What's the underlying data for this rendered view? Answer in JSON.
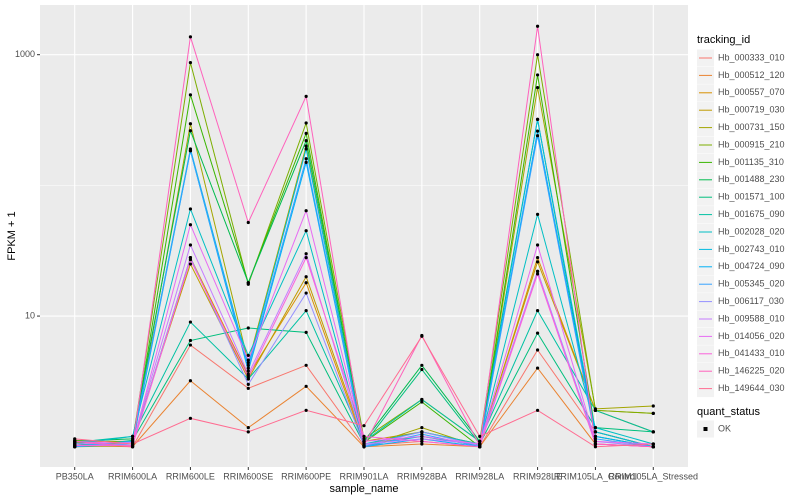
{
  "chart_data": {
    "type": "line",
    "x_label": "sample_name",
    "y_label": "FPKM + 1",
    "log_y": true,
    "grid": true,
    "legend_title": "tracking_id",
    "legend_position": "right",
    "point_legend": {
      "title": "quant_status",
      "labels": [
        "OK"
      ]
    },
    "categories": [
      "PB350LA",
      "RRIM600LA",
      "RRIM600LE",
      "RRIM600SE",
      "RRIM600PE",
      "RRIM901LA",
      "RRIM928BA",
      "RRIM928LA",
      "RRIM928LE",
      "RRIM105LA_Control",
      "RRIM105LA_Stressed"
    ],
    "ylim": [
      0.7,
      2400
    ],
    "yticks": [
      10,
      1000
    ],
    "series": [
      {
        "name": "Hb_000333_010",
        "color": "#F8766D",
        "values": [
          1.05,
          1.0,
          6,
          2.8,
          4.2,
          1.02,
          1.1,
          1.0,
          5.5,
          1.3,
          1.0
        ]
      },
      {
        "name": "Hb_000512_120",
        "color": "#EA8331",
        "values": [
          1.02,
          1.0,
          3.2,
          1.4,
          2.9,
          1.0,
          1.05,
          1.0,
          4.0,
          1.05,
          1.0
        ]
      },
      {
        "name": "Hb_000557_070",
        "color": "#D89000",
        "values": [
          1.08,
          1.05,
          28,
          3.5,
          18,
          1.05,
          1.2,
          1.02,
          28,
          1.9,
          1.3
        ]
      },
      {
        "name": "Hb_000719_030",
        "color": "#C09B00",
        "values": [
          1.1,
          1.1,
          25,
          3.3,
          20,
          1.1,
          1.3,
          1.05,
          26,
          1.9,
          1.8
        ]
      },
      {
        "name": "Hb_000731_150",
        "color": "#A3A500",
        "values": [
          1.0,
          1.02,
          296,
          4.4,
          200,
          1.0,
          1.4,
          1.0,
          560,
          1.95,
          2.05
        ]
      },
      {
        "name": "Hb_000915_210",
        "color": "#7CAE00",
        "values": [
          1.12,
          1.08,
          870,
          17.5,
          300,
          1.15,
          2.3,
          1.1,
          1000,
          1.9,
          1.8
        ]
      },
      {
        "name": "Hb_001135_310",
        "color": "#39B600",
        "values": [
          1.05,
          1.05,
          493,
          18,
          250,
          1.08,
          2.2,
          1.0,
          700,
          1.3,
          1.0
        ]
      },
      {
        "name": "Hb_001488_230",
        "color": "#00BB4E",
        "values": [
          1.1,
          1.15,
          262,
          18,
          220,
          1.1,
          4.2,
          1.1,
          320,
          1.2,
          1.0
        ]
      },
      {
        "name": "Hb_001571_100",
        "color": "#00BF7D",
        "values": [
          1.0,
          1.12,
          6.5,
          8.1,
          7.5,
          1.05,
          3.9,
          1.05,
          7.4,
          1.4,
          1.3
        ]
      },
      {
        "name": "Hb_001675_090",
        "color": "#00C1A3",
        "values": [
          1.08,
          1.2,
          9,
          3.3,
          11,
          1.1,
          2.3,
          1.1,
          11,
          1.9,
          1.3
        ]
      },
      {
        "name": "Hb_002028_020",
        "color": "#00BFC4",
        "values": [
          1.05,
          1.2,
          66,
          5,
          45,
          1.05,
          1.3,
          1.05,
          60,
          1.4,
          1.05
        ]
      },
      {
        "name": "Hb_002743_010",
        "color": "#00BAE0",
        "values": [
          1.02,
          1.1,
          190,
          4.2,
          190,
          1.02,
          1.2,
          1.02,
          320,
          1.3,
          1.0
        ]
      },
      {
        "name": "Hb_004724_090",
        "color": "#00B0F6",
        "values": [
          1.0,
          1.05,
          184,
          3.8,
          150,
          1.0,
          1.15,
          1.0,
          260,
          1.2,
          1.0
        ]
      },
      {
        "name": "Hb_005345_020",
        "color": "#35A2FF",
        "values": [
          1.0,
          1.1,
          184,
          4.0,
          160,
          1.0,
          1.25,
          1.0,
          240,
          1.15,
          1.0
        ]
      },
      {
        "name": "Hb_006117_030",
        "color": "#9590FF",
        "values": [
          1.02,
          1.05,
          28,
          3.0,
          15,
          1.02,
          1.3,
          1.02,
          22,
          1.1,
          1.0
        ]
      },
      {
        "name": "Hb_009588_010",
        "color": "#C77CFF",
        "values": [
          1.05,
          1.08,
          35,
          3.6,
          30,
          1.05,
          1.15,
          1.05,
          22,
          1.05,
          1.0
        ]
      },
      {
        "name": "Hb_014056_020",
        "color": "#E76BF3",
        "values": [
          1.1,
          1.05,
          50,
          4.6,
          64,
          1.1,
          1.2,
          1.05,
          35,
          1.1,
          1.05
        ]
      },
      {
        "name": "Hb_041433_010",
        "color": "#FA62DB",
        "values": [
          1.02,
          1.02,
          27,
          3.4,
          28,
          1.2,
          1.1,
          1.0,
          21,
          1.05,
          1.0
        ]
      },
      {
        "name": "Hb_146225_020",
        "color": "#FF62BC",
        "values": [
          1.1,
          1.0,
          1370,
          52,
          480,
          1.02,
          7.1,
          1.02,
          1650,
          1.05,
          1.0
        ]
      },
      {
        "name": "Hb_149644_030",
        "color": "#FF6C91",
        "values": [
          1.15,
          1.05,
          1.65,
          1.3,
          1.9,
          1.45,
          7.0,
          1.2,
          1.9,
          1.0,
          1.05
        ]
      }
    ]
  }
}
